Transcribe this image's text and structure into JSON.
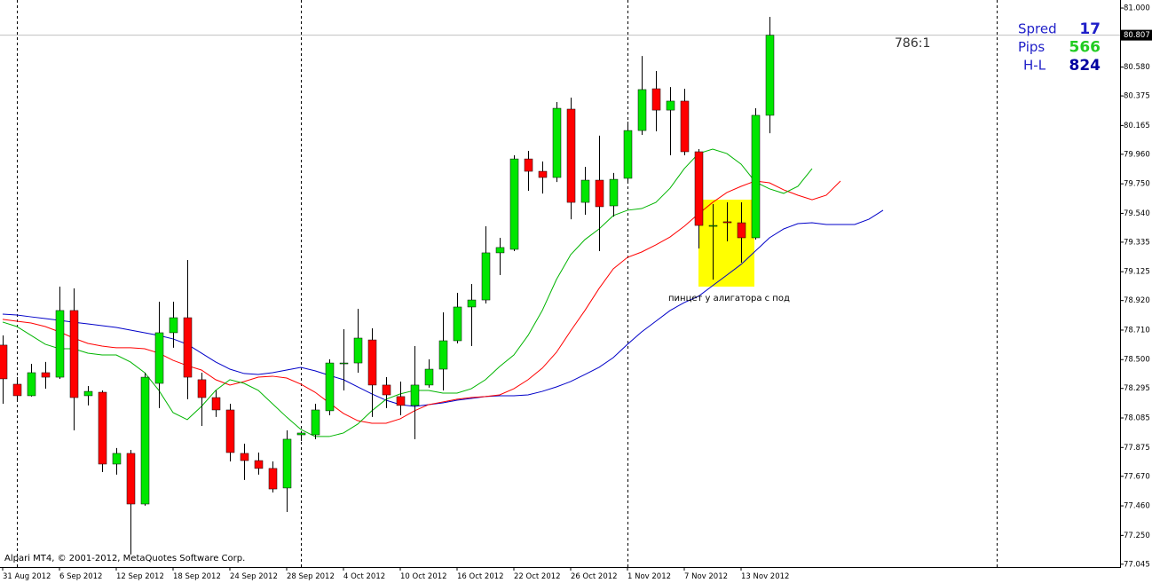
{
  "chart_data": {
    "type": "candlestick",
    "categories": [
      "31 Aug 2012",
      null,
      null,
      null,
      "6 Sep 2012",
      null,
      null,
      null,
      "12 Sep 2012",
      null,
      null,
      null,
      "18 Sep 2012",
      null,
      null,
      null,
      "24 Sep 2012",
      null,
      null,
      null,
      "28 Sep 2012",
      null,
      null,
      null,
      "4 Oct 2012",
      null,
      null,
      null,
      "10 Oct 2012",
      null,
      null,
      null,
      "16 Oct 2012",
      null,
      null,
      null,
      "22 Oct 2012",
      null,
      null,
      null,
      "26 Oct 2012",
      null,
      null,
      null,
      "1 Nov 2012",
      null,
      null,
      null,
      "7 Nov 2012",
      null,
      null,
      null,
      "13 Nov 2012",
      null,
      null
    ],
    "open": [
      78.603,
      78.325,
      78.243,
      78.407,
      78.375,
      78.849,
      78.243,
      78.268,
      77.757,
      77.833,
      77.473,
      78.331,
      78.691,
      78.798,
      78.357,
      78.23,
      78.142,
      77.833,
      77.782,
      77.726,
      77.587,
      77.965,
      77.965,
      78.136,
      78.47,
      78.476,
      78.64,
      78.319,
      78.237,
      78.174,
      78.319,
      78.432,
      78.634,
      78.874,
      78.924,
      79.259,
      79.284,
      79.927,
      79.839,
      79.795,
      80.281,
      79.618,
      79.776,
      79.593,
      79.789,
      80.129,
      80.426,
      80.274,
      80.338,
      79.978,
      79.448,
      79.48,
      79.473,
      79.366,
      80.237
    ],
    "high": [
      78.672,
      78.375,
      78.47,
      78.483,
      79.019,
      79.006,
      78.312,
      78.281,
      77.871,
      77.858,
      78.407,
      78.912,
      78.912,
      79.208,
      78.407,
      78.281,
      78.186,
      77.902,
      77.839,
      77.776,
      77.997,
      77.991,
      78.186,
      78.502,
      78.716,
      78.861,
      78.722,
      78.375,
      78.344,
      78.596,
      78.502,
      78.836,
      78.975,
      79.038,
      79.448,
      79.366,
      79.953,
      79.984,
      79.909,
      80.331,
      80.363,
      79.871,
      80.092,
      79.827,
      80.192,
      80.659,
      80.552,
      80.438,
      80.426,
      79.997,
      79.606,
      79.618,
      79.618,
      80.287,
      80.937
    ],
    "low": [
      78.186,
      78.205,
      78.237,
      78.293,
      78.363,
      77.997,
      78.174,
      77.7,
      77.682,
      77.114,
      77.461,
      78.155,
      78.584,
      78.218,
      78.028,
      78.092,
      77.776,
      77.644,
      77.682,
      77.555,
      77.416,
      77.921,
      77.934,
      78.104,
      78.281,
      78.407,
      78.092,
      78.155,
      78.104,
      77.934,
      78.3,
      78.281,
      78.615,
      78.596,
      78.899,
      79.101,
      79.271,
      79.7,
      79.681,
      79.763,
      79.498,
      79.53,
      79.271,
      79.517,
      79.763,
      80.098,
      80.123,
      79.953,
      79.953,
      79.29,
      79.069,
      79.341,
      79.189,
      79.353,
      80.11
    ],
    "close": [
      78.363,
      78.243,
      78.407,
      78.375,
      78.849,
      78.23,
      78.274,
      77.757,
      77.833,
      77.473,
      78.375,
      78.691,
      78.798,
      78.375,
      78.23,
      78.142,
      77.839,
      77.782,
      77.726,
      77.58,
      77.934,
      77.978,
      78.142,
      78.476,
      78.476,
      78.653,
      78.319,
      78.249,
      78.174,
      78.319,
      78.432,
      78.634,
      78.874,
      78.924,
      79.259,
      79.297,
      79.927,
      79.839,
      79.795,
      80.287,
      79.618,
      79.776,
      79.587,
      79.782,
      80.129,
      80.42,
      80.274,
      80.338,
      79.978,
      79.454,
      79.454,
      79.473,
      79.366,
      80.237,
      80.807
    ],
    "up_color": "#00e600",
    "down_color": "#ff0000",
    "wick_color": "#000000",
    "indicators": [
      {
        "color": "#0000c8",
        "values": [
          78.823,
          78.817,
          78.804,
          78.792,
          78.779,
          78.766,
          78.754,
          78.741,
          78.729,
          78.71,
          78.691,
          78.672,
          78.647,
          78.609,
          78.546,
          78.483,
          78.432,
          78.401,
          78.394,
          78.407,
          78.426,
          78.445,
          78.42,
          78.388,
          78.357,
          78.306,
          78.256,
          78.211,
          78.18,
          78.167,
          78.18,
          78.192,
          78.211,
          78.224,
          78.237,
          78.243,
          78.243,
          78.249,
          78.274,
          78.306,
          78.344,
          78.394,
          78.445,
          78.514,
          78.609,
          78.697,
          78.773,
          78.849,
          78.906,
          78.95,
          79.026,
          79.101,
          79.177,
          79.271,
          79.366,
          79.429,
          79.467,
          79.473,
          79.461,
          79.461,
          79.461,
          79.498,
          79.562
        ]
      },
      {
        "color": "#ff0000",
        "values": [
          78.786,
          78.773,
          78.76,
          78.735,
          78.697,
          78.653,
          78.615,
          78.596,
          78.584,
          78.584,
          78.577,
          78.546,
          78.495,
          78.457,
          78.426,
          78.357,
          78.319,
          78.344,
          78.375,
          78.382,
          78.369,
          78.325,
          78.268,
          78.192,
          78.117,
          78.066,
          78.047,
          78.047,
          78.079,
          78.136,
          78.18,
          78.199,
          78.218,
          78.23,
          78.237,
          78.249,
          78.293,
          78.357,
          78.439,
          78.552,
          78.704,
          78.849,
          79.006,
          79.145,
          79.227,
          79.265,
          79.316,
          79.372,
          79.448,
          79.536,
          79.618,
          79.688,
          79.732,
          79.77,
          79.757,
          79.707,
          79.669,
          79.637,
          79.669,
          79.77
        ]
      },
      {
        "color": "#00b400",
        "values": [
          78.767,
          78.735,
          78.672,
          78.609,
          78.577,
          78.577,
          78.546,
          78.533,
          78.533,
          78.483,
          78.407,
          78.281,
          78.123,
          78.073,
          78.167,
          78.281,
          78.357,
          78.331,
          78.281,
          78.186,
          78.091,
          78.003,
          77.953,
          77.953,
          77.978,
          78.041,
          78.136,
          78.218,
          78.256,
          78.281,
          78.281,
          78.262,
          78.262,
          78.293,
          78.357,
          78.451,
          78.533,
          78.672,
          78.849,
          79.07,
          79.246,
          79.353,
          79.429,
          79.524,
          79.562,
          79.574,
          79.618,
          79.719,
          79.858,
          79.965,
          79.997,
          79.965,
          79.89,
          79.764,
          79.714,
          79.682,
          79.732,
          79.858
        ]
      }
    ],
    "ylim": [
      77.025,
      81.057
    ],
    "yticks": [
      {
        "value": 81,
        "label": "81.000"
      },
      {
        "value": 80.58,
        "label": "80.580"
      },
      80.375,
      80.165,
      {
        "value": 79.96,
        "label": "79.960"
      },
      {
        "value": 79.75,
        "label": "79.750"
      },
      {
        "value": 79.54,
        "label": "79.540"
      },
      79.335,
      79.125,
      {
        "value": 78.92,
        "label": "78.920"
      },
      {
        "value": 78.71,
        "label": "78.710"
      },
      {
        "value": 78.5,
        "label": "78.500"
      },
      78.295,
      78.085,
      77.875,
      {
        "value": 77.67,
        "label": "77.670"
      },
      {
        "value": 77.46,
        "label": "77.460"
      },
      {
        "value": 77.25,
        "label": "77.250"
      },
      77.045
    ],
    "last_price": 80.807,
    "annotations": [
      "786:1",
      "пинцет у алигатора с под"
    ],
    "info": {
      "label_color": "#1f1fc8",
      "rows": [
        {
          "label": "Spred",
          "value": 17,
          "color": "#1f1fc8"
        },
        {
          "label": "Pips",
          "value": 566,
          "color": "#22cc22"
        },
        {
          "label": "H-L",
          "value": 824,
          "color": "#0000a0"
        }
      ]
    },
    "footer": "Alpari MT4, © 2001-2012, MetaQuotes Software Corp."
  }
}
